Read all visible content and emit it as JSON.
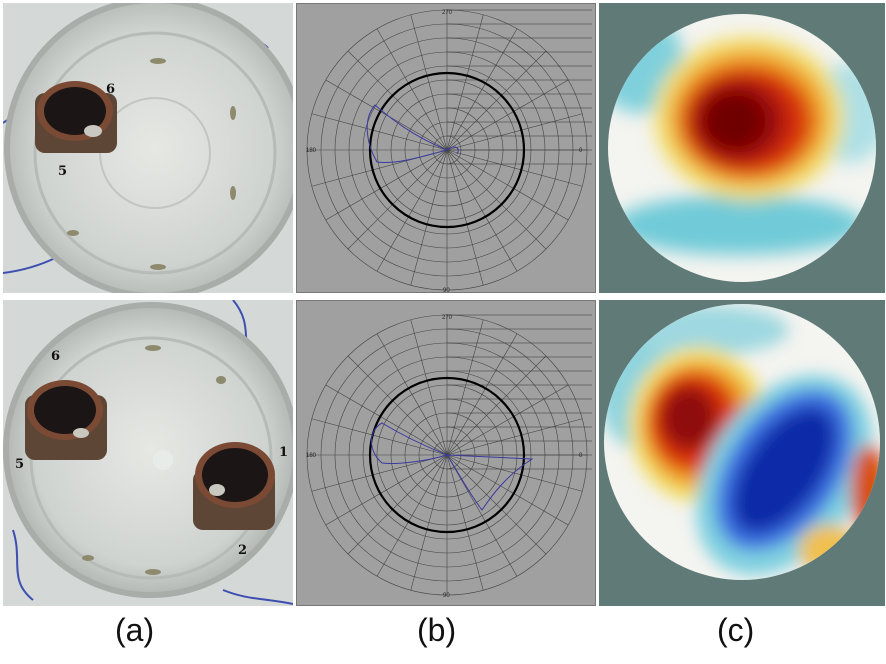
{
  "captions": {
    "a": "(a)",
    "b": "(b)",
    "c": "(c)"
  },
  "photos": {
    "top": {
      "labels": [
        "6",
        "5"
      ]
    },
    "bottom": {
      "labels": [
        "6",
        "5",
        "1",
        "2"
      ]
    }
  },
  "polar": {
    "angle_labels": {
      "top": "270",
      "bottom": "90",
      "left": "180",
      "right": "0"
    }
  },
  "colors": {
    "heat_background": "#5f7a77",
    "polar_background": "#a0a0a0",
    "trace": "#3a3aa0",
    "high": "#8b0000",
    "low": "#0a2aa8"
  }
}
